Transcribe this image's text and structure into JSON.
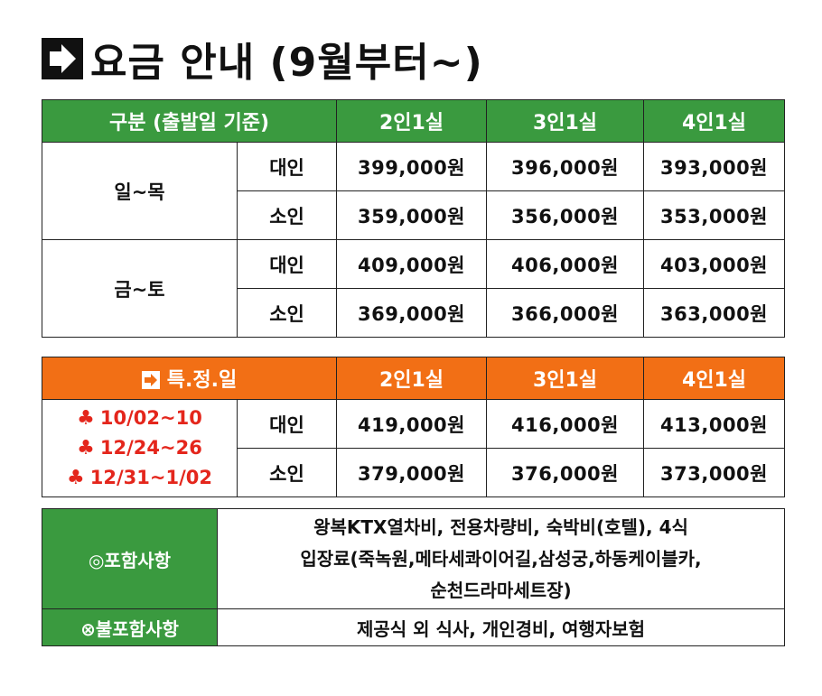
{
  "title": "요금 안내 (9월부터~)",
  "table_regular": {
    "header": {
      "category": "구분 (출발일 기준)",
      "col1": "2인1실",
      "col2": "3인1실",
      "col3": "4인1실"
    },
    "groups": [
      {
        "day": "일~목",
        "rows": [
          {
            "type": "대인",
            "p2": "399,000원",
            "p3": "396,000원",
            "p4": "393,000원"
          },
          {
            "type": "소인",
            "p2": "359,000원",
            "p3": "356,000원",
            "p4": "353,000원"
          }
        ]
      },
      {
        "day": "금~토",
        "rows": [
          {
            "type": "대인",
            "p2": "409,000원",
            "p3": "406,000원",
            "p4": "403,000원"
          },
          {
            "type": "소인",
            "p2": "369,000원",
            "p3": "366,000원",
            "p4": "363,000원"
          }
        ]
      }
    ]
  },
  "table_special": {
    "header": {
      "category": "특.정.일",
      "col1": "2인1실",
      "col2": "3인1실",
      "col3": "4인1실"
    },
    "dates": [
      "10/02~10",
      "12/24~26",
      "12/31~1/02"
    ],
    "date_marker": "♣",
    "rows": [
      {
        "type": "대인",
        "p2": "419,000원",
        "p3": "416,000원",
        "p4": "413,000원"
      },
      {
        "type": "소인",
        "p2": "379,000원",
        "p3": "376,000원",
        "p4": "373,000원"
      }
    ]
  },
  "table_info": {
    "included_label": "◎포함사항",
    "included_lines": [
      "왕복KTX열차비, 전용차량비, 숙박비(호텔), 4식",
      "입장료(죽녹원,메타세콰이어길,삼성궁,하동케이블카,",
      "순천드라마세트장)"
    ],
    "excluded_label": "⊗불포함사항",
    "excluded_text": "제공식 외 식사, 개인경비, 여행자보험"
  },
  "colors": {
    "green": "#3a9a3f",
    "orange": "#f26f15",
    "red": "#e4261c"
  }
}
